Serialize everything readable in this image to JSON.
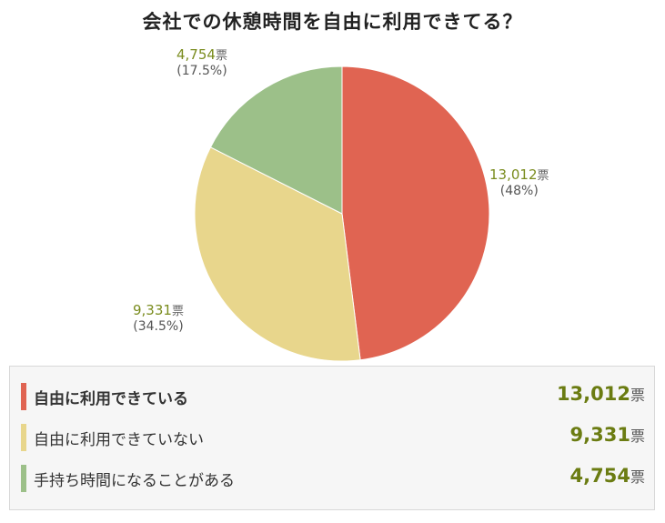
{
  "title": "会社での休憩時間を自由に利用できてる？",
  "colors": {
    "red": "#e06452",
    "yellow": "#e8d68c",
    "green": "#9cc089",
    "value_green": "#6b7c12"
  },
  "chart_data": {
    "type": "pie",
    "title": "会社での休憩時間を自由に利用できてる？",
    "unit": "票",
    "slices": [
      {
        "name": "自由に利用できている",
        "value": 13012,
        "value_text": "13,012",
        "percent_text": "(48%)",
        "color": "#e06452"
      },
      {
        "name": "自由に利用できていない",
        "value": 9331,
        "value_text": "9,331",
        "percent_text": "(34.5%)",
        "color": "#e8d68c"
      },
      {
        "name": "手持ち時間になることがある",
        "value": 4754,
        "value_text": "4,754",
        "percent_text": "(17.5%)",
        "color": "#9cc089"
      }
    ]
  },
  "legend": {
    "unit": "票",
    "items": [
      {
        "label": "自由に利用できている",
        "value": "13,012"
      },
      {
        "label": "自由に利用できていない",
        "value": "9,331"
      },
      {
        "label": "手持ち時間になることがある",
        "value": "4,754"
      }
    ]
  }
}
